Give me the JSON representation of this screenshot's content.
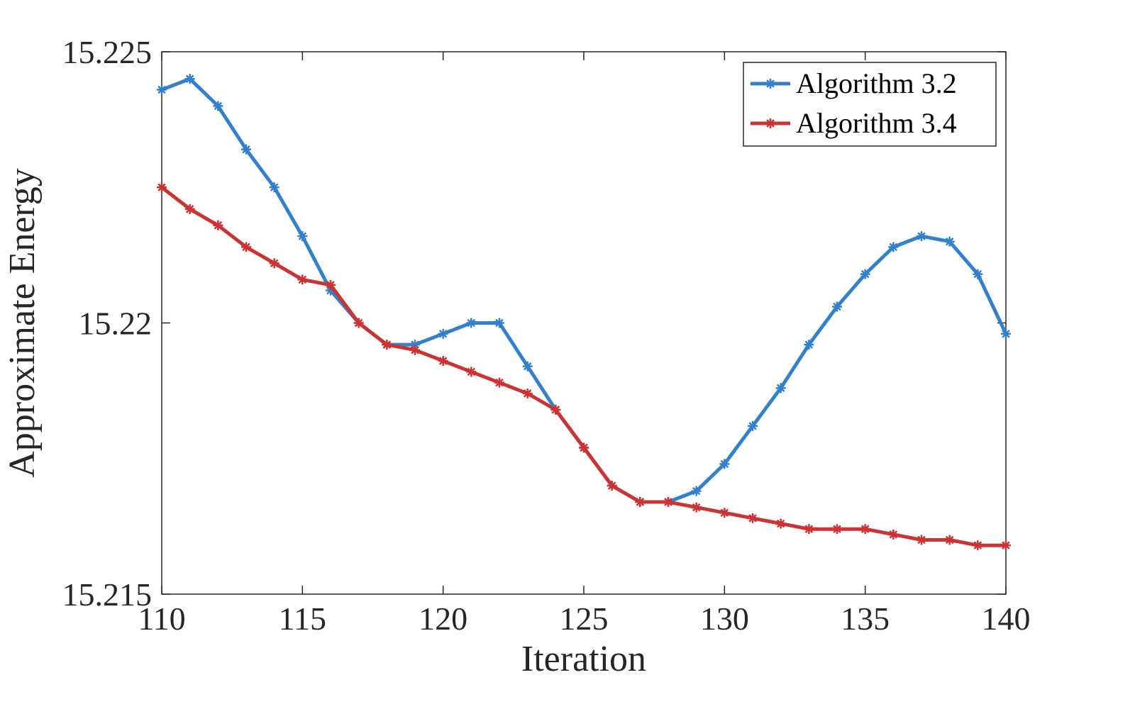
{
  "chart_data": {
    "type": "line",
    "title": "",
    "xlabel": "Iteration",
    "ylabel": "Approximate Energy",
    "xlim": [
      110,
      140
    ],
    "ylim": [
      15.215,
      15.225
    ],
    "xticks": [
      110,
      115,
      120,
      125,
      130,
      135,
      140
    ],
    "yticks": [
      15.215,
      15.22,
      15.225
    ],
    "ytick_labels": [
      "15.215",
      "15.22",
      "15.225"
    ],
    "grid": false,
    "legend_position": "top-right",
    "x": [
      110,
      111,
      112,
      113,
      114,
      115,
      116,
      117,
      118,
      119,
      120,
      121,
      122,
      123,
      124,
      125,
      126,
      127,
      128,
      129,
      130,
      131,
      132,
      133,
      134,
      135,
      136,
      137,
      138,
      139,
      140
    ],
    "series": [
      {
        "name": "Algorithm 3.2",
        "color": "#3380cc",
        "marker": "asterisk",
        "values": [
          15.2243,
          15.2245,
          15.224,
          15.2232,
          15.2225,
          15.2216,
          15.2206,
          15.22,
          15.2196,
          15.2196,
          15.2198,
          15.22,
          15.22,
          15.2192,
          15.2184,
          15.2177,
          15.217,
          15.2167,
          15.2167,
          15.2169,
          15.2174,
          15.2181,
          15.2188,
          15.2196,
          15.2203,
          15.2209,
          15.2214,
          15.2216,
          15.2215,
          15.2209,
          15.2198
        ]
      },
      {
        "name": "Algorithm 3.4",
        "color": "#cc3333",
        "marker": "asterisk",
        "values": [
          15.2225,
          15.2221,
          15.2218,
          15.2214,
          15.2211,
          15.2208,
          15.2207,
          15.22,
          15.2196,
          15.2195,
          15.2193,
          15.2191,
          15.2189,
          15.2187,
          15.2184,
          15.2177,
          15.217,
          15.2167,
          15.2167,
          15.2166,
          15.2165,
          15.2164,
          15.2163,
          15.2162,
          15.2162,
          15.2162,
          15.2161,
          15.216,
          15.216,
          15.2159,
          15.2159
        ]
      }
    ]
  }
}
